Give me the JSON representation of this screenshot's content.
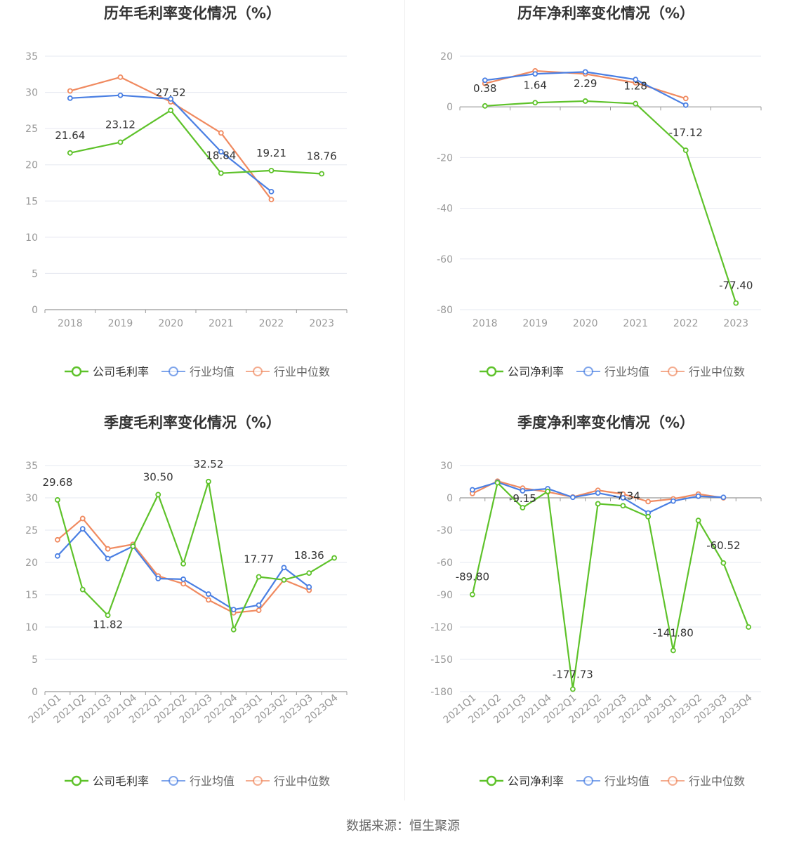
{
  "colors": {
    "company": "#5ec22a",
    "average": "#4a7fe3",
    "median": "#f08a60",
    "grid": "#e6e8f0",
    "axis": "#999999",
    "text": "#333333"
  },
  "source": "数据来源：恒生聚源",
  "chart_data": [
    {
      "type": "line",
      "title": "历年毛利率变化情况（%）",
      "categories": [
        "2018",
        "2019",
        "2020",
        "2021",
        "2022",
        "2023"
      ],
      "ylim": [
        0,
        35
      ],
      "yticks": [
        0,
        5,
        10,
        15,
        20,
        25,
        30,
        35
      ],
      "grid": true,
      "legend_position": "bottom",
      "series": [
        {
          "name": "公司毛利率",
          "role": "company",
          "values": [
            21.64,
            23.12,
            27.52,
            18.84,
            19.21,
            18.76
          ],
          "labels": [
            "21.64",
            "23.12",
            "27.52",
            "18.84",
            "19.21",
            "18.76"
          ]
        },
        {
          "name": "行业均值",
          "role": "average",
          "values": [
            29.2,
            29.6,
            29.1,
            21.8,
            16.3,
            null
          ]
        },
        {
          "name": "行业中位数",
          "role": "median",
          "values": [
            30.2,
            32.1,
            28.7,
            24.4,
            15.2,
            null
          ]
        }
      ]
    },
    {
      "type": "line",
      "title": "历年净利率变化情况（%）",
      "categories": [
        "2018",
        "2019",
        "2020",
        "2021",
        "2022",
        "2023"
      ],
      "ylim": [
        -80,
        20
      ],
      "yticks": [
        -80,
        -60,
        -40,
        -20,
        0,
        20
      ],
      "grid": true,
      "legend_position": "bottom",
      "series": [
        {
          "name": "公司净利率",
          "role": "company",
          "values": [
            0.38,
            1.64,
            2.29,
            1.28,
            -17.12,
            -77.4
          ],
          "labels": [
            "0.38",
            "1.64",
            "2.29",
            "1.28",
            "-17.12",
            "-77.40"
          ]
        },
        {
          "name": "行业均值",
          "role": "average",
          "values": [
            10.5,
            13.0,
            13.8,
            10.8,
            0.7,
            null
          ]
        },
        {
          "name": "行业中位数",
          "role": "median",
          "values": [
            9.2,
            14.2,
            13.0,
            9.5,
            3.3,
            null
          ]
        }
      ]
    },
    {
      "type": "line",
      "title": "季度毛利率变化情况（%）",
      "categories": [
        "2021Q1",
        "2021Q2",
        "2021Q3",
        "2021Q4",
        "2022Q1",
        "2022Q2",
        "2022Q3",
        "2022Q4",
        "2023Q1",
        "2023Q2",
        "2023Q3",
        "2023Q4"
      ],
      "ylim": [
        0,
        35
      ],
      "yticks": [
        0,
        5,
        10,
        15,
        20,
        25,
        30,
        35
      ],
      "grid": true,
      "legend_position": "bottom",
      "series": [
        {
          "name": "公司毛利率",
          "role": "company",
          "values": [
            29.68,
            15.8,
            11.82,
            22.5,
            30.5,
            19.8,
            32.52,
            9.6,
            17.77,
            17.3,
            18.36,
            20.7
          ],
          "labels": [
            "29.68",
            "",
            "11.82",
            "",
            "30.50",
            "",
            "32.52",
            "",
            "17.77",
            "",
            "18.36",
            ""
          ]
        },
        {
          "name": "行业均值",
          "role": "average",
          "values": [
            21.0,
            25.2,
            20.6,
            22.5,
            17.5,
            17.4,
            15.1,
            12.7,
            13.4,
            19.2,
            16.2,
            null
          ]
        },
        {
          "name": "行业中位数",
          "role": "median",
          "values": [
            23.5,
            26.8,
            22.1,
            22.8,
            17.9,
            16.7,
            14.2,
            12.2,
            12.6,
            17.3,
            15.7,
            null
          ]
        }
      ]
    },
    {
      "type": "line",
      "title": "季度净利率变化情况（%）",
      "categories": [
        "2021Q1",
        "2021Q2",
        "2021Q3",
        "2021Q4",
        "2022Q1",
        "2022Q2",
        "2022Q3",
        "2022Q4",
        "2023Q1",
        "2023Q2",
        "2023Q3",
        "2023Q4"
      ],
      "ylim": [
        -180,
        30
      ],
      "yticks": [
        -180,
        -150,
        -120,
        -90,
        -60,
        -30,
        0,
        30
      ],
      "grid": true,
      "legend_position": "bottom",
      "series": [
        {
          "name": "公司净利率",
          "role": "company",
          "values": [
            -89.8,
            14.0,
            -9.15,
            6.0,
            -177.73,
            -5.5,
            -7.34,
            -17.5,
            -141.8,
            -21.0,
            -60.52,
            -120.0
          ],
          "labels": [
            "-89.80",
            "",
            "-9.15",
            "",
            "-177.73",
            "",
            "-7.34",
            "",
            "-141.80",
            "",
            "-60.52",
            ""
          ]
        },
        {
          "name": "行业均值",
          "role": "average",
          "values": [
            7.5,
            14.5,
            6.5,
            8.5,
            0.5,
            4.5,
            0.0,
            -14.0,
            -3.0,
            1.5,
            0.5,
            null
          ]
        },
        {
          "name": "行业中位数",
          "role": "median",
          "values": [
            4.0,
            15.5,
            9.0,
            5.5,
            0.8,
            7.0,
            3.5,
            -3.5,
            -1.0,
            3.5,
            0.0,
            null
          ]
        }
      ]
    }
  ]
}
